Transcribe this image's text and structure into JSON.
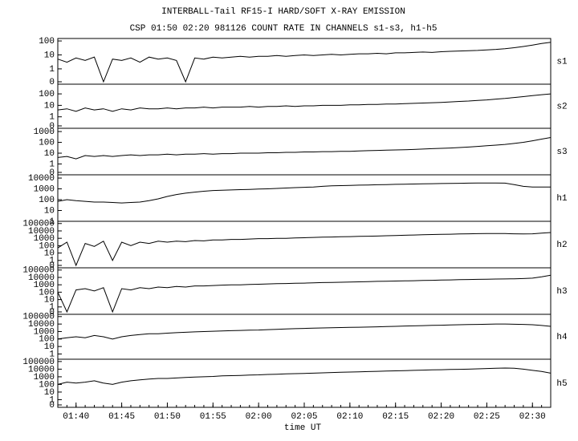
{
  "chart_data": {
    "type": "line",
    "title": "INTERBALL-Tail RF15-I HARD/SOFT X-RAY EMISSION",
    "subtitle": "CSP 01:50 02:20 981126  COUNT RATE IN CHANNELS s1-s3, h1-h5",
    "xlabel": "time UT",
    "yscale": "log",
    "color": "#000000",
    "xlim": [
      "01:38",
      "02:32"
    ],
    "xticks": [
      "01:40",
      "01:45",
      "01:50",
      "01:55",
      "02:00",
      "02:05",
      "02:10",
      "02:15",
      "02:20",
      "02:25",
      "02:30"
    ],
    "x": [
      "01:38",
      "01:39",
      "01:40",
      "01:41",
      "01:42",
      "01:43",
      "01:44",
      "01:45",
      "01:46",
      "01:47",
      "01:48",
      "01:49",
      "01:50",
      "01:51",
      "01:52",
      "01:53",
      "01:54",
      "01:55",
      "01:56",
      "01:57",
      "01:58",
      "01:59",
      "02:00",
      "02:01",
      "02:02",
      "02:03",
      "02:04",
      "02:05",
      "02:06",
      "02:07",
      "02:08",
      "02:09",
      "02:10",
      "02:11",
      "02:12",
      "02:13",
      "02:14",
      "02:15",
      "02:16",
      "02:17",
      "02:18",
      "02:19",
      "02:20",
      "02:21",
      "02:22",
      "02:23",
      "02:24",
      "02:25",
      "02:26",
      "02:27",
      "02:28",
      "02:29",
      "02:30",
      "02:31",
      "02:32"
    ],
    "series": [
      {
        "name": "s1",
        "ylim": [
          0.08,
          150
        ],
        "yticks": [
          0,
          1,
          10,
          100
        ],
        "values": [
          5,
          3,
          6,
          4,
          7,
          0,
          5,
          4,
          6,
          3,
          7,
          5,
          6,
          4,
          0,
          6,
          5,
          7,
          6,
          7,
          8,
          7,
          8,
          8,
          9,
          8,
          9,
          10,
          9,
          10,
          11,
          10,
          11,
          12,
          12,
          13,
          12,
          14,
          14,
          15,
          16,
          15,
          17,
          18,
          19,
          20,
          21,
          23,
          25,
          28,
          33,
          40,
          50,
          65,
          80
        ]
      },
      {
        "name": "s2",
        "ylim": [
          0.1,
          700
        ],
        "yticks": [
          0,
          1,
          10,
          100
        ],
        "values": [
          4,
          5,
          3,
          6,
          4,
          5,
          3,
          5,
          4,
          6,
          5,
          5,
          6,
          5,
          6,
          6,
          7,
          6,
          7,
          7,
          7,
          8,
          7,
          8,
          8,
          9,
          8,
          9,
          9,
          10,
          10,
          10,
          11,
          11,
          12,
          12,
          13,
          13,
          14,
          15,
          16,
          17,
          18,
          20,
          22,
          24,
          27,
          30,
          35,
          40,
          48,
          58,
          70,
          85,
          100
        ]
      },
      {
        "name": "s3",
        "ylim": [
          0.1,
          2000
        ],
        "yticks": [
          0,
          1,
          10,
          100,
          1000
        ],
        "values": [
          4,
          5,
          3,
          6,
          5,
          6,
          5,
          6,
          7,
          6,
          7,
          7,
          8,
          7,
          8,
          8,
          9,
          8,
          9,
          9,
          10,
          10,
          10,
          11,
          11,
          12,
          12,
          13,
          13,
          14,
          14,
          15,
          15,
          16,
          17,
          18,
          19,
          20,
          21,
          22,
          24,
          26,
          28,
          30,
          33,
          37,
          42,
          48,
          55,
          65,
          80,
          100,
          140,
          200,
          280
        ]
      },
      {
        "name": "h1",
        "ylim": [
          1,
          20000
        ],
        "yticks": [
          1,
          10,
          100,
          1000,
          10000
        ],
        "values": [
          70,
          100,
          80,
          70,
          60,
          60,
          55,
          50,
          55,
          60,
          80,
          120,
          200,
          300,
          400,
          500,
          600,
          700,
          750,
          800,
          850,
          900,
          950,
          1000,
          1100,
          1200,
          1300,
          1400,
          1500,
          1700,
          1900,
          2000,
          2100,
          2200,
          2300,
          2400,
          2500,
          2600,
          2700,
          2800,
          2900,
          3000,
          3100,
          3200,
          3300,
          3400,
          3500,
          3500,
          3500,
          3400,
          2500,
          1700,
          1500,
          1500,
          1500
        ]
      },
      {
        "name": "h2",
        "ylim": [
          0.1,
          200000
        ],
        "yticks": [
          0,
          1,
          10,
          100,
          1000,
          10000,
          100000
        ],
        "values": [
          50,
          300,
          0,
          200,
          80,
          400,
          1,
          300,
          100,
          300,
          200,
          400,
          300,
          400,
          350,
          500,
          450,
          600,
          600,
          700,
          700,
          800,
          900,
          900,
          1000,
          1000,
          1100,
          1200,
          1300,
          1400,
          1500,
          1600,
          1700,
          1800,
          1900,
          2000,
          2200,
          2400,
          2600,
          2800,
          3000,
          3200,
          3400,
          3600,
          3800,
          4000,
          4200,
          4400,
          4500,
          4300,
          4000,
          3800,
          4000,
          5000,
          6000
        ]
      },
      {
        "name": "h3",
        "ylim": [
          0.1,
          200000
        ],
        "yticks": [
          0,
          1,
          10,
          100,
          1000,
          10000,
          100000
        ],
        "values": [
          100,
          0,
          200,
          300,
          150,
          400,
          0,
          300,
          200,
          400,
          300,
          500,
          400,
          600,
          500,
          700,
          700,
          800,
          900,
          1000,
          1000,
          1100,
          1200,
          1300,
          1400,
          1500,
          1600,
          1700,
          1800,
          2000,
          2100,
          2200,
          2400,
          2500,
          2700,
          2900,
          3000,
          3200,
          3400,
          3600,
          3800,
          4000,
          4300,
          4600,
          4900,
          5200,
          5500,
          5800,
          6000,
          6200,
          6500,
          7000,
          8000,
          12000,
          20000
        ]
      },
      {
        "name": "h4",
        "ylim": [
          0.2,
          200000
        ],
        "yticks": [
          1,
          10,
          100,
          1000,
          10000,
          100000
        ],
        "values": [
          100,
          150,
          200,
          150,
          300,
          200,
          100,
          200,
          300,
          400,
          500,
          500,
          600,
          700,
          800,
          900,
          1000,
          1100,
          1200,
          1300,
          1400,
          1500,
          1600,
          1800,
          2000,
          2200,
          2400,
          2600,
          2800,
          3000,
          3200,
          3400,
          3600,
          3800,
          4000,
          4300,
          4600,
          5000,
          5400,
          5800,
          6200,
          6600,
          7000,
          7500,
          8000,
          8500,
          9000,
          9500,
          10000,
          10000,
          9500,
          9000,
          8000,
          6500,
          5000
        ]
      },
      {
        "name": "h5",
        "ylim": [
          0.1,
          200000
        ],
        "yticks": [
          0,
          1,
          10,
          100,
          1000,
          10000,
          100000
        ],
        "values": [
          100,
          200,
          150,
          200,
          300,
          150,
          100,
          200,
          300,
          400,
          500,
          600,
          600,
          700,
          800,
          900,
          1000,
          1100,
          1300,
          1400,
          1500,
          1700,
          1800,
          2000,
          2200,
          2400,
          2600,
          2800,
          3000,
          3300,
          3600,
          3900,
          4200,
          4500,
          4800,
          5200,
          5600,
          6000,
          6500,
          7000,
          7500,
          8000,
          8500,
          9000,
          9500,
          10000,
          11000,
          12000,
          13000,
          14000,
          13000,
          10000,
          7000,
          5000,
          3000
        ]
      }
    ]
  }
}
